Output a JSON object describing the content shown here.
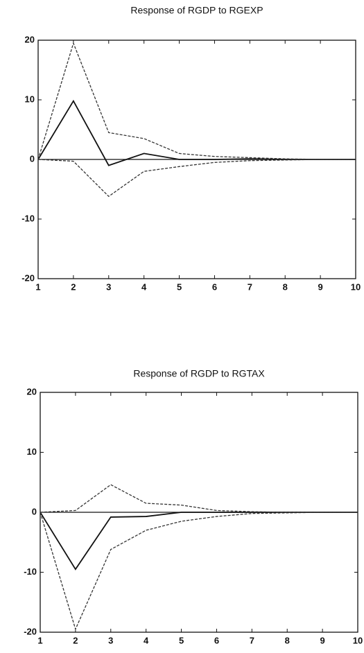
{
  "chart_data": [
    {
      "type": "line",
      "title": "Response of RGDP to RGEXP",
      "x": [
        1,
        2,
        3,
        4,
        5,
        6,
        7,
        8,
        9,
        10
      ],
      "series": [
        {
          "color": "#111111",
          "dash": false,
          "values": [
            0,
            9.8,
            -1,
            1,
            0,
            0,
            0.1,
            0,
            0,
            0
          ]
        },
        {
          "color": "#333333",
          "dash": true,
          "values": [
            0,
            19.5,
            4.5,
            3.5,
            1,
            0.5,
            0.3,
            0.1,
            0,
            0
          ]
        },
        {
          "color": "#333333",
          "dash": true,
          "values": [
            0,
            -0.3,
            -6.2,
            -2,
            -1.2,
            -0.5,
            -0.2,
            -0.1,
            0,
            0
          ]
        }
      ],
      "xlim": [
        1,
        10
      ],
      "xticks": [
        1,
        2,
        3,
        4,
        5,
        6,
        7,
        8,
        9,
        10
      ],
      "ylim": [
        -20,
        20
      ],
      "yticks": [
        -20,
        -10,
        0,
        10,
        20
      ],
      "hline": 0
    },
    {
      "type": "line",
      "title": "Response of RGDP to RGTAX",
      "x": [
        1,
        2,
        3,
        4,
        5,
        6,
        7,
        8,
        9,
        10
      ],
      "series": [
        {
          "color": "#111111",
          "dash": false,
          "values": [
            0,
            -9.5,
            -0.8,
            -0.7,
            0,
            0,
            0,
            0,
            0,
            0
          ]
        },
        {
          "color": "#333333",
          "dash": true,
          "values": [
            0,
            0.3,
            4.6,
            1.5,
            1.2,
            0.3,
            0.1,
            0,
            0,
            0
          ]
        },
        {
          "color": "#333333",
          "dash": true,
          "values": [
            0,
            -19.5,
            -6.2,
            -3,
            -1.5,
            -0.7,
            -0.2,
            -0.1,
            0,
            0
          ]
        }
      ],
      "xlim": [
        1,
        10
      ],
      "xticks": [
        1,
        2,
        3,
        4,
        5,
        6,
        7,
        8,
        9,
        10
      ],
      "ylim": [
        -20,
        20
      ],
      "yticks": [
        -20,
        -10,
        0,
        10,
        20
      ],
      "hline": 0
    }
  ]
}
